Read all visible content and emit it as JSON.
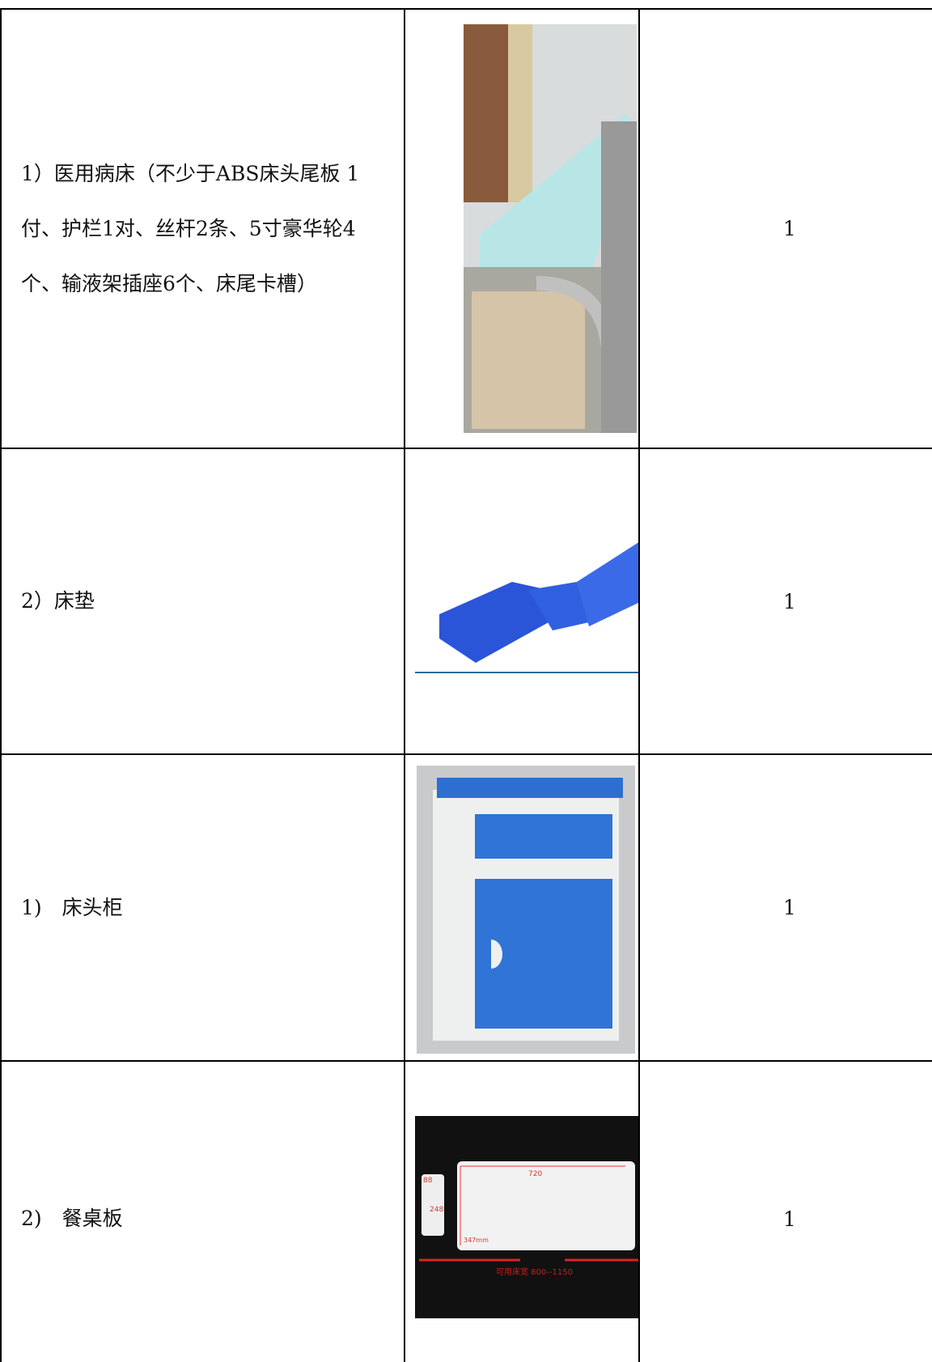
{
  "table": {
    "rows": [
      {
        "item": "1）医用病床（不少于ABS床头尾板 1付、护栏1对、丝杆2条、5寸豪华轮4个、输液架插座6个、床尾卡槽）",
        "quantity": "1"
      },
      {
        "item": "2）床垫",
        "quantity": "1"
      },
      {
        "item": "1)　床头柜",
        "quantity": "1"
      },
      {
        "item": "2)　餐桌板",
        "quantity": "1",
        "image_labels": [
          "720",
          "88",
          "248",
          "347mm",
          "可用床宽 800--1150"
        ]
      }
    ]
  }
}
